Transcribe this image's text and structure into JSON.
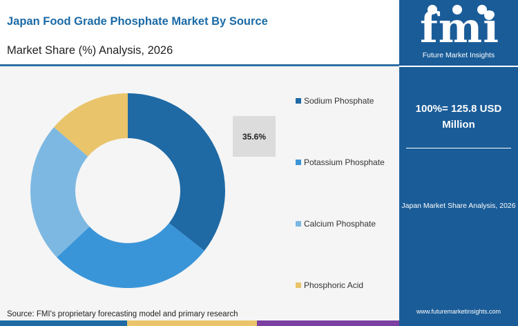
{
  "header": {
    "title": "Japan Food Grade Phosphate Market By Source",
    "subtitle": "Market Share (%) Analysis, 2026"
  },
  "chart_data": {
    "type": "pie",
    "subtype": "donut",
    "categories": [
      "Sodium Phosphate",
      "Potassium Phosphate",
      "Calcium Phosphate",
      "Phosphoric Acid"
    ],
    "values": [
      35.6,
      27.4,
      23.3,
      13.7
    ],
    "colors": [
      "#1f6aa5",
      "#3a95d8",
      "#7db8e2",
      "#e9c46a"
    ],
    "data_labels": [
      {
        "category": "Sodium Phosphate",
        "text": "35.6%"
      }
    ],
    "legend_position": "right"
  },
  "source": "Source: FMI's proprietary forecasting model and primary research",
  "sidebar": {
    "logo_text": "fmi",
    "logo_tagline": "Future Market Insights",
    "total_value": "100%= 125.8 USD Million",
    "note": "Japan Market Share Analysis, 2026",
    "url": "www.futuremarketinsights.com"
  },
  "colors": {
    "title": "#1a6aa6",
    "sidebar_bg": "#1a5c98",
    "stripe": [
      "#1f6aa5",
      "#e9c46a",
      "#7a3fa0",
      "#2a9d8f"
    ]
  }
}
